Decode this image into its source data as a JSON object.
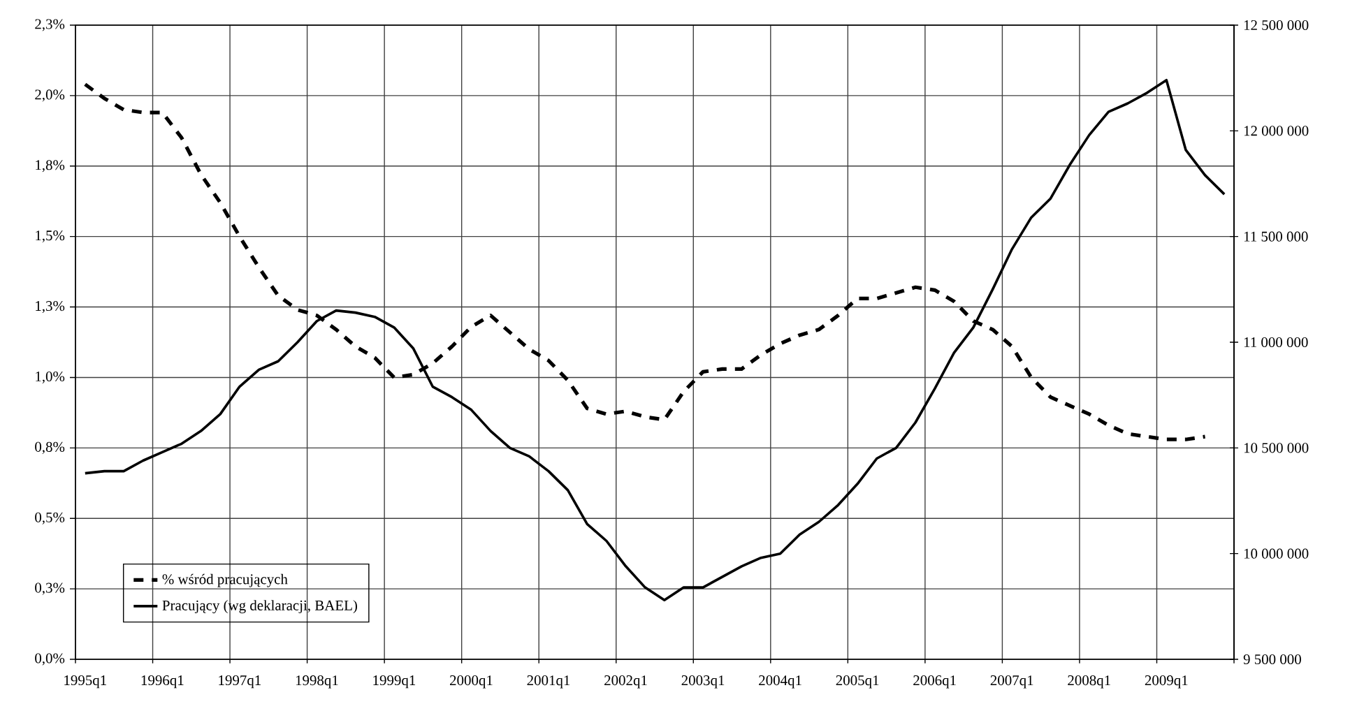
{
  "chart_data": {
    "type": "line",
    "categories": [
      "1995q1",
      null,
      null,
      null,
      "1996q1",
      null,
      null,
      null,
      "1997q1",
      null,
      null,
      null,
      "1998q1",
      null,
      null,
      null,
      "1999q1",
      null,
      null,
      null,
      "2000q1",
      null,
      null,
      null,
      "2001q1",
      null,
      null,
      null,
      "2002q1",
      null,
      null,
      null,
      "2003q1",
      null,
      null,
      null,
      "2004q1",
      null,
      null,
      null,
      "2005q1",
      null,
      null,
      null,
      "2006q1",
      null,
      null,
      null,
      "2007q1",
      null,
      null,
      null,
      "2008q1",
      null,
      null,
      null,
      "2009q1",
      null,
      null,
      null
    ],
    "series": [
      {
        "name": "% wśród pracujących",
        "color": "#000000",
        "line_style": "dashed",
        "axis": "y",
        "values": [
          2.04,
          1.99,
          1.95,
          1.94,
          1.94,
          1.85,
          1.72,
          1.62,
          1.5,
          1.39,
          1.29,
          1.24,
          1.22,
          1.17,
          1.11,
          1.07,
          1.0,
          1.01,
          1.05,
          1.11,
          1.18,
          1.22,
          1.16,
          1.1,
          1.06,
          0.99,
          0.89,
          0.87,
          0.88,
          0.86,
          0.85,
          0.95,
          1.02,
          1.03,
          1.03,
          1.08,
          1.12,
          1.15,
          1.17,
          1.22,
          1.28,
          1.28,
          1.3,
          1.32,
          1.31,
          1.27,
          1.2,
          1.17,
          1.11,
          1.0,
          0.93,
          0.9,
          0.87,
          0.83,
          0.8,
          0.79,
          0.78,
          0.78,
          0.79,
          null
        ]
      },
      {
        "name": "Pracujący (wg deklaracji, BAEL)",
        "color": "#000000",
        "line_style": "solid",
        "axis": "y2",
        "values": [
          10380000,
          10390000,
          10390000,
          10440000,
          10480000,
          10520000,
          10580000,
          10660000,
          10790000,
          10870000,
          10910000,
          11000000,
          11100000,
          11150000,
          11140000,
          11120000,
          11070000,
          10970000,
          10790000,
          10740000,
          10680000,
          10580000,
          10500000,
          10460000,
          10390000,
          10300000,
          10140000,
          10060000,
          9940000,
          9840000,
          9780000,
          9840000,
          9840000,
          9890000,
          9940000,
          9980000,
          10000000,
          10090000,
          10150000,
          10230000,
          10330000,
          10450000,
          10500000,
          10620000,
          10780000,
          10950000,
          11070000,
          11250000,
          11440000,
          11590000,
          11680000,
          11840000,
          11980000,
          12090000,
          12130000,
          12180000,
          12240000,
          11910000,
          11790000,
          11700000
        ]
      }
    ],
    "ylim": [
      0,
      2.25
    ],
    "yticks": [
      {
        "value": 0,
        "label": "0,0%"
      },
      {
        "value": 0.25,
        "label": "0,3%"
      },
      {
        "value": 0.5,
        "label": "0,5%"
      },
      {
        "value": 0.75,
        "label": "0,8%"
      },
      {
        "value": 1.0,
        "label": "1,0%"
      },
      {
        "value": 1.25,
        "label": "1,3%"
      },
      {
        "value": 1.5,
        "label": "1,5%"
      },
      {
        "value": 1.75,
        "label": "1,8%"
      },
      {
        "value": 2.0,
        "label": "2,0%"
      },
      {
        "value": 2.25,
        "label": "2,3%"
      }
    ],
    "y2lim": [
      9500000,
      12500000
    ],
    "y2ticks": [
      {
        "value": 9500000,
        "label": "9 500 000"
      },
      {
        "value": 10000000,
        "label": "10 000 000"
      },
      {
        "value": 10500000,
        "label": "10 500 000"
      },
      {
        "value": 11000000,
        "label": "11 000 000"
      },
      {
        "value": 11500000,
        "label": "11 500 000"
      },
      {
        "value": 12000000,
        "label": "12 000 000"
      },
      {
        "value": 12500000,
        "label": "12 500 000"
      }
    ],
    "grid": true,
    "legend": "bottom left"
  }
}
